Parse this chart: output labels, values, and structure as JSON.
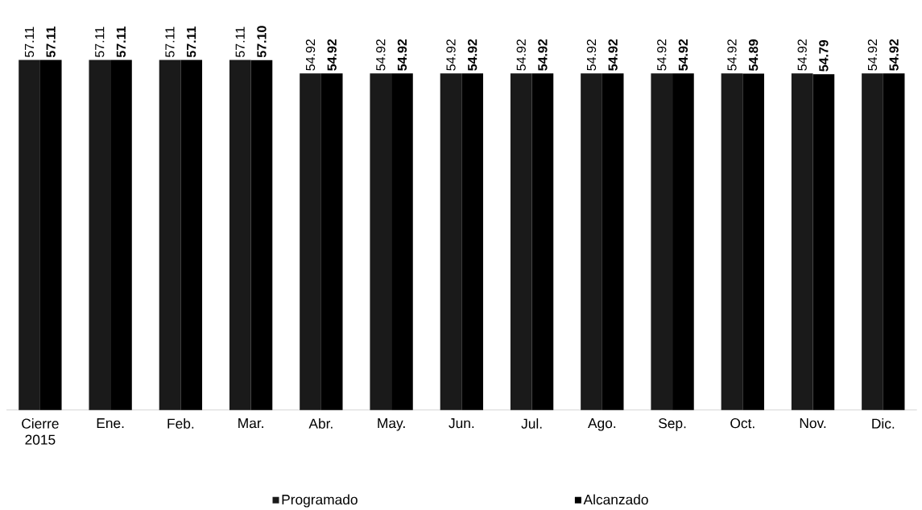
{
  "chart_data": {
    "type": "bar",
    "categories": [
      "Cierre 2015",
      "Ene.",
      "Feb.",
      "Mar.",
      "Abr.",
      "May.",
      "Jun.",
      "Jul.",
      "Ago.",
      "Sep.",
      "Oct.",
      "Nov.",
      "Dic."
    ],
    "series": [
      {
        "name": "Programado",
        "color": "#1a1a1a",
        "values": [
          57.11,
          57.11,
          57.11,
          57.11,
          54.92,
          54.92,
          54.92,
          54.92,
          54.92,
          54.92,
          54.92,
          54.92,
          54.92
        ],
        "value_labels": [
          "57.11",
          "57.11",
          "57.11",
          "57.11",
          "54.92",
          "54.92",
          "54.92",
          "54.92",
          "54.92",
          "54.92",
          "54.92",
          "54.92",
          "54.92"
        ]
      },
      {
        "name": "Alcanzado",
        "color": "#000000",
        "values": [
          57.11,
          57.11,
          57.11,
          57.1,
          54.92,
          54.92,
          54.92,
          54.92,
          54.92,
          54.92,
          54.89,
          54.79,
          54.92
        ],
        "value_labels": [
          "**57.11**",
          "**57.11**",
          "**57.11**",
          "**57.10**",
          "**54.92**",
          "**54.92**",
          "**54.92**",
          "**54.92**",
          "**54.92**",
          "**54.92**",
          "**54.89**",
          "**54.79**",
          "**54.92**"
        ]
      }
    ],
    "legend": "bottom"
  }
}
